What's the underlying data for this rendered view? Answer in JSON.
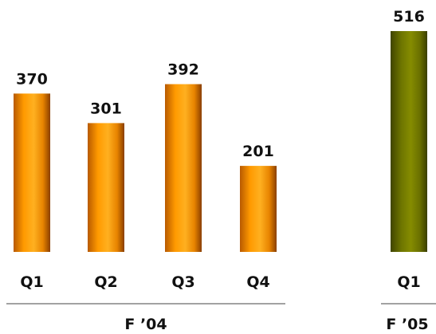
{
  "chart_data": {
    "type": "bar",
    "title": "",
    "xlabel": "",
    "ylabel": "",
    "ylim": [
      0,
      516
    ],
    "grid": false,
    "groups": [
      {
        "label": "F ’04",
        "color": "#ff9900",
        "categories": [
          "Q1",
          "Q2",
          "Q3",
          "Q4"
        ],
        "values": [
          370,
          301,
          392,
          201
        ]
      },
      {
        "label": "F ’05",
        "color": "#808000",
        "categories": [
          "Q1"
        ],
        "values": [
          516
        ]
      }
    ]
  }
}
